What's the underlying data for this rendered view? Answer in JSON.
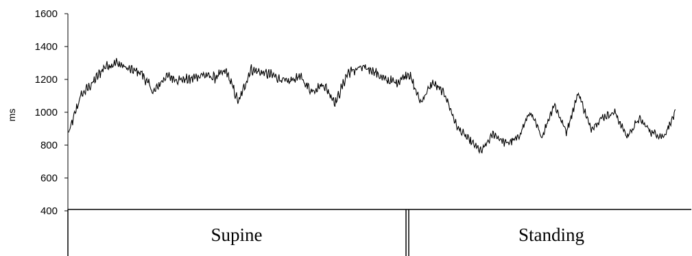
{
  "chart_data": {
    "type": "line",
    "title": "",
    "ylabel": "ms",
    "xlabel": "",
    "ylim": [
      400,
      1600
    ],
    "yticks": [
      "1600",
      "1400",
      "1200",
      "1000",
      "800",
      "600",
      "400"
    ],
    "grid": false,
    "legend": "none",
    "phases": [
      "Supine",
      "Standing"
    ],
    "series": [
      {
        "color": "#000000",
        "x": [
          0,
          2,
          4,
          6,
          8,
          10,
          12,
          14,
          16,
          18,
          20,
          22,
          24,
          26,
          28,
          30,
          32,
          34,
          36,
          38,
          40,
          42,
          44,
          46,
          48,
          50,
          52,
          54,
          56,
          58,
          60,
          62,
          64,
          66,
          68,
          70,
          72,
          74,
          76,
          78,
          80,
          82,
          84,
          86,
          88,
          90,
          92,
          94,
          96,
          98,
          100
        ],
        "values": [
          870,
          1100,
          1180,
          1280,
          1300,
          1260,
          1240,
          1120,
          1220,
          1200,
          1200,
          1230,
          1210,
          1250,
          1060,
          1260,
          1240,
          1220,
          1180,
          1220,
          1130,
          1170,
          1060,
          1240,
          1270,
          1260,
          1200,
          1180,
          1240,
          1060,
          1180,
          1110,
          910,
          830,
          760,
          870,
          810,
          840,
          1000,
          850,
          1050,
          880,
          1120,
          900,
          970,
          1000,
          850,
          960,
          880,
          850,
          1000
        ]
      }
    ]
  }
}
